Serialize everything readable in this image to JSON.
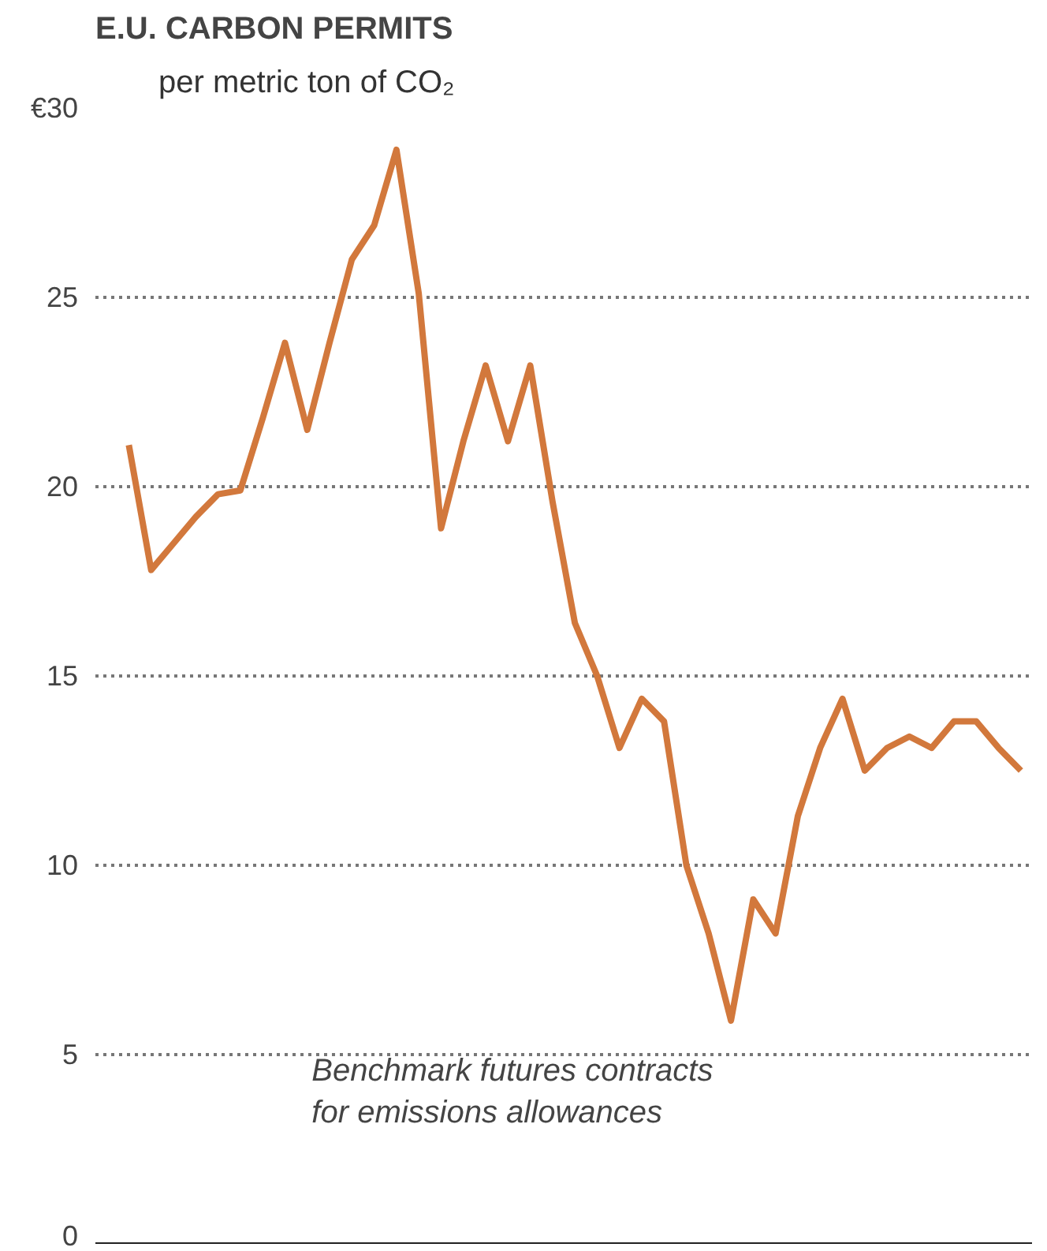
{
  "chart_data": {
    "type": "line",
    "title": "E.U. CARBON PERMITS",
    "ylabel": "per metric ton of CO₂",
    "categories": [
      null,
      null,
      null,
      null,
      null,
      null,
      null,
      null,
      null,
      null,
      null,
      null,
      null,
      null,
      null,
      null,
      null,
      null,
      null,
      null,
      null,
      null,
      null,
      null,
      null,
      null,
      null,
      null,
      null,
      null,
      null,
      null,
      null,
      null,
      null,
      null,
      null,
      null,
      null,
      null,
      null
    ],
    "series": [
      {
        "color": "#d2783c",
        "values": [
          21.1,
          17.8,
          18.5,
          19.2,
          19.8,
          19.9,
          21.8,
          23.8,
          21.5,
          23.8,
          26.0,
          26.9,
          28.9,
          25.1,
          18.9,
          21.2,
          23.2,
          21.2,
          23.2,
          19.6,
          16.4,
          15.0,
          13.1,
          14.4,
          13.8,
          10.0,
          8.2,
          5.9,
          9.1,
          8.2,
          11.3,
          13.1,
          14.4,
          12.5,
          13.1,
          13.4,
          13.1,
          13.8,
          13.8,
          13.1,
          12.5
        ]
      }
    ],
    "ylim": [
      0,
      30
    ],
    "yticks": [
      0,
      5,
      10,
      15,
      20,
      25,
      {
        "value": 30,
        "label": "€30"
      }
    ],
    "grid": "y",
    "marker": "none",
    "line_style": "solid",
    "annotations": [
      "Benchmark futures contracts\nfor emissions allowances"
    ]
  }
}
